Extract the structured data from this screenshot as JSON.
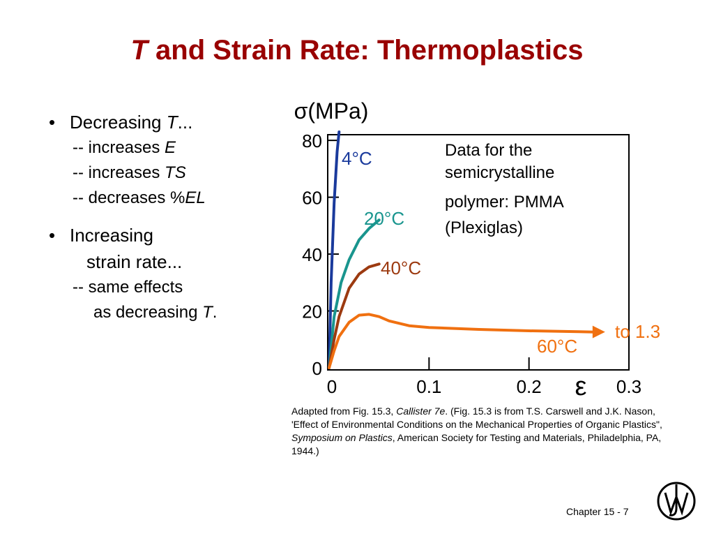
{
  "slide": {
    "title_italic": "T",
    "title_rest": " and Strain Rate:  Thermoplastics",
    "footer": "Chapter 15 -  7"
  },
  "bullets": {
    "b1_head": "Decreasing ",
    "b1_head_italic": "T",
    "b1_head_tail": "...",
    "b1_items": [
      {
        "prefix": "-- increases ",
        "italic": "E"
      },
      {
        "prefix": "-- increases ",
        "italic": "TS"
      },
      {
        "prefix": "-- decreases %",
        "italic": "EL"
      }
    ],
    "b2_line1": "Increasing",
    "b2_line2": "strain rate...",
    "b2_sub1": "-- same effects",
    "b2_sub2_prefix": "as decreasing ",
    "b2_sub2_italic": "T",
    "b2_sub2_tail": "."
  },
  "caption": {
    "p1": "Adapted from Fig. 15.3, ",
    "p1_italic": "Callister 7e",
    "p2": ".  (Fig. 15.3 is from T.S. Carswell and J.K. Nason, 'Effect of Environmental Conditions on the Mechanical Properties of Organic Plastics\", ",
    "p2_italic": "Symposium on Plastics",
    "p3": ", American Society for Testing and Materials, Philadelphia, PA, 1944.)"
  },
  "chart_data": {
    "type": "line",
    "ylabel": "σ(MPa)",
    "xlabel": "ε",
    "xlim": [
      0,
      0.3
    ],
    "ylim": [
      0,
      82
    ],
    "x_ticks": [
      0,
      0.1,
      0.2,
      0.3
    ],
    "x_tick_labels": [
      "0",
      "0.1",
      "0.2",
      "0.3"
    ],
    "y_ticks": [
      0,
      20,
      40,
      60,
      80
    ],
    "y_tick_labels": [
      "0",
      "20",
      "40",
      "60",
      "80"
    ],
    "note_lines": [
      "Data for the",
      "semicrystalline",
      "polymer: PMMA",
      "(Plexiglas)"
    ],
    "arrow_label": "to 1.3",
    "series": [
      {
        "name": "4°C",
        "color": "#1a3a9c",
        "x": [
          0,
          0.002,
          0.005,
          0.008,
          0.01
        ],
        "y": [
          0,
          30,
          58,
          76,
          86
        ]
      },
      {
        "name": "20°C",
        "color": "#19958e",
        "x": [
          0,
          0.005,
          0.012,
          0.02,
          0.03,
          0.04,
          0.05
        ],
        "y": [
          0,
          18,
          30,
          38,
          45,
          49,
          52
        ]
      },
      {
        "name": "40°C",
        "color": "#9c3a10",
        "x": [
          0,
          0.005,
          0.01,
          0.02,
          0.03,
          0.04,
          0.05
        ],
        "y": [
          0,
          10,
          18,
          28,
          33,
          35.5,
          36.5
        ]
      },
      {
        "name": "60°C",
        "color": "#f07010",
        "x": [
          0,
          0.005,
          0.01,
          0.02,
          0.03,
          0.04,
          0.05,
          0.06,
          0.08,
          0.1,
          0.15,
          0.2,
          0.25,
          0.265
        ],
        "y": [
          0,
          6,
          11,
          16,
          18.5,
          18.8,
          18,
          16.5,
          14.8,
          14.2,
          13.5,
          13,
          12.7,
          12.6
        ]
      }
    ],
    "series_label_colors": [
      "#1a3a9c",
      "#19958e",
      "#9c3a10",
      "#f07010"
    ]
  }
}
